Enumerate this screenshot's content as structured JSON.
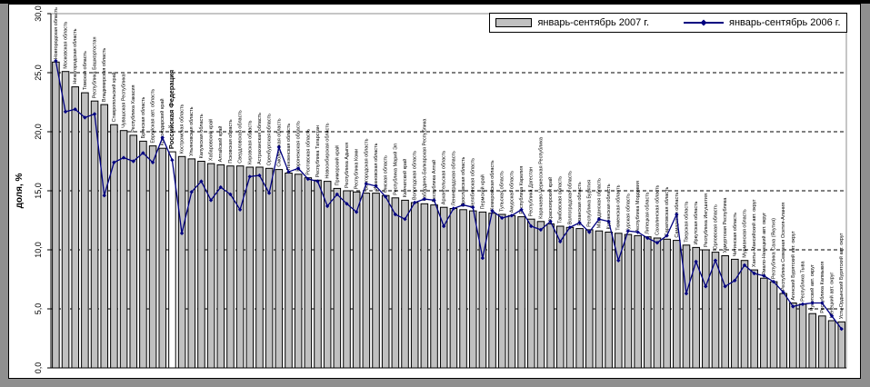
{
  "legend": {
    "bars_label": "январь-сентябрь 2007 г.",
    "line_label": "январь-сентябрь 2006 г."
  },
  "axes": {
    "y_title": "доля, %",
    "y_ticks": [
      "0,0",
      "5,0",
      "10,0",
      "15,0",
      "20,0",
      "25,0",
      "30,0"
    ],
    "y_max": 30
  },
  "colors": {
    "bar_fill": "#c0c0c0",
    "bar_highlight_fill": "#ffffff",
    "bar_stroke": "#000000",
    "line": "#000080",
    "grid": "#000000",
    "plot_border": "#8c8c8c",
    "axis": "#000000"
  },
  "chart_data": {
    "type": "bar",
    "title": "",
    "xlabel": "",
    "ylabel": "доля, %",
    "ylim": [
      0,
      30
    ],
    "grid": "dashed horizontal lines every 5",
    "legend_position": "top-right",
    "highlight_category": "Российская Федерация",
    "categories": [
      "Новгородская область",
      "Московская область",
      "Нижегородская область",
      "Томская область",
      "Республика Башкортостан",
      "Владимирская область",
      "Ставропольский край",
      "Чувашская Республика",
      "Республика Хакасия",
      "Брянская область",
      "Еврейская авт. область",
      "Краснодарский край",
      "Российская Федерация",
      "Костромская область",
      "Ульяновская область",
      "Калужская область",
      "Хабаровский край",
      "Алтайский край",
      "Псковская область",
      "Свердловская область",
      "Кировская область",
      "Астраханская область",
      "Оренбургская область",
      "Смоленская область",
      "Пензенская область",
      "Воронежская область",
      "Ростовская область",
      "Республика Татарстан",
      "Новосибирская область",
      "Приморский край",
      "Республика Адыгея",
      "Республика Коми",
      "Белгородская область",
      "Ивановская область",
      "Омская область",
      "Республика Марий Эл",
      "Камчатский край",
      "Вологодская область",
      "Кабардино-Балкарская Республика",
      "Республика Алтай",
      "Архангельская область",
      "Ленинградская область",
      "Ярославская область",
      "Челябинская область",
      "Пермский край",
      "Кемеровская область",
      "Тульская область",
      "Амурская область",
      "Республика Карелия",
      "Республика Дагестан",
      "Карачаево-Черкесская Республика",
      "Красноярский край",
      "Тамбовская область",
      "Волгоградская область",
      "Рязанская область",
      "Республика Бурятия",
      "Магаданская область",
      "Курганская область",
      "Тюменская область",
      "Курская область",
      "Республика Мордовия",
      "Липецкая область",
      "Сахалинская область",
      "Саратовская область",
      "Самарская область",
      "Тверская область",
      "Иркутская область",
      "Республика Ингушетия",
      "Орловская область",
      "Удмуртская Республика",
      "Читинская область",
      "Мурманская область",
      "Ханты-Мансийский авт. округ",
      "Ямало-Ненецкий авт. округ",
      "Республика Саха (Якутия)",
      "Республика Северная Осетия-Алания",
      "Агинский Бурятский авт. округ",
      "Республика Тыва",
      "Чукотский авт. округ",
      "Республика Калмыкия",
      "Ненецкий авт. округ",
      "Усть-Ордынский Бурятский авт. округ"
    ],
    "series": [
      {
        "name": "январь-сентябрь 2007 г.",
        "type": "bar",
        "values": [
          25.9,
          25.1,
          23.8,
          23.3,
          22.6,
          22.3,
          20.6,
          20.1,
          19.7,
          19.2,
          18.8,
          18.6,
          18.3,
          17.9,
          17.7,
          17.5,
          17.3,
          17.2,
          17.1,
          17.1,
          17.0,
          17.0,
          16.9,
          16.8,
          16.5,
          16.4,
          16.1,
          15.9,
          15.8,
          15.2,
          15.0,
          14.9,
          14.8,
          14.8,
          14.6,
          14.4,
          14.2,
          14.0,
          13.9,
          13.8,
          13.6,
          13.5,
          13.4,
          13.3,
          13.2,
          13.1,
          13.0,
          12.9,
          12.8,
          12.6,
          12.4,
          12.2,
          12.0,
          11.9,
          11.8,
          11.7,
          11.6,
          11.5,
          11.4,
          11.3,
          11.2,
          11.1,
          11.0,
          10.9,
          10.8,
          10.4,
          10.2,
          10.0,
          9.8,
          9.5,
          9.2,
          9.1,
          8.3,
          7.6,
          7.3,
          6.3,
          5.5,
          5.4,
          4.6,
          4.4,
          4.0,
          3.9
        ]
      },
      {
        "name": "январь-сентябрь 2006 г.",
        "type": "line",
        "values": [
          26.0,
          21.7,
          21.9,
          21.2,
          21.5,
          14.6,
          17.4,
          17.8,
          17.5,
          18.2,
          17.4,
          19.5,
          17.6,
          11.4,
          14.9,
          15.8,
          14.2,
          15.3,
          14.7,
          13.4,
          16.2,
          16.3,
          14.8,
          18.7,
          16.6,
          16.9,
          16.0,
          15.8,
          13.7,
          14.7,
          13.9,
          13.2,
          15.6,
          15.4,
          14.5,
          13.0,
          12.6,
          14.0,
          14.3,
          14.2,
          12.0,
          13.5,
          13.8,
          13.6,
          9.3,
          13.3,
          12.7,
          12.9,
          13.4,
          12.0,
          11.7,
          12.4,
          10.7,
          11.9,
          12.3,
          11.5,
          12.6,
          12.4,
          9.1,
          11.6,
          11.5,
          11.0,
          10.6,
          11.2,
          13.0,
          6.3,
          9.0,
          6.9,
          9.1,
          6.9,
          7.4,
          8.7,
          8.0,
          7.8,
          7.3,
          6.4,
          5.2,
          5.4,
          5.5,
          5.5,
          4.4,
          3.3
        ]
      }
    ]
  }
}
